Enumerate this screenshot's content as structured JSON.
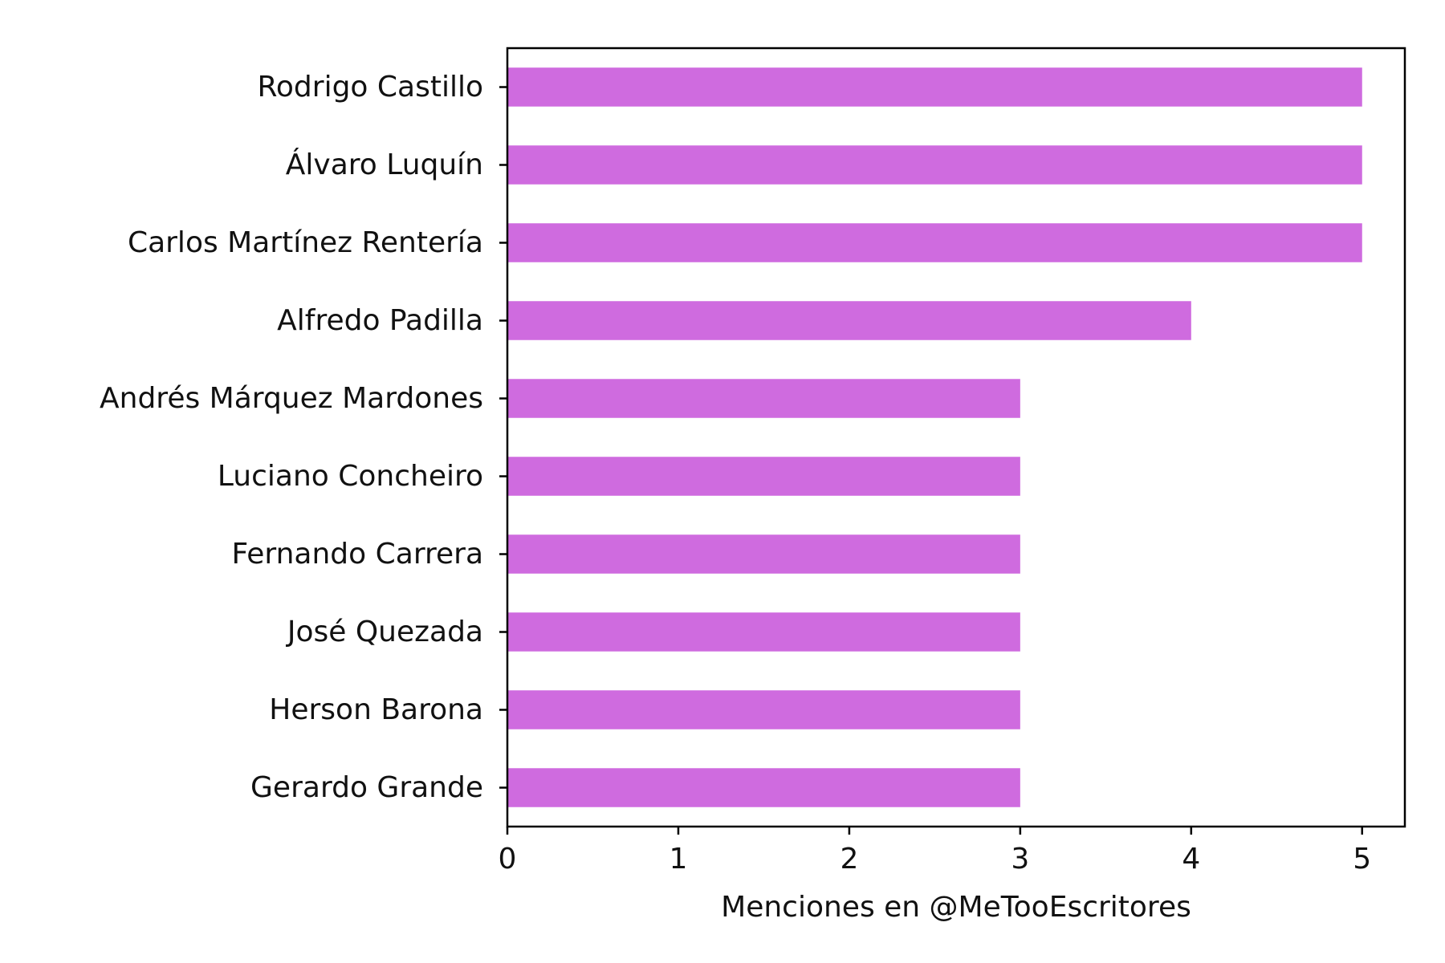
{
  "chart_data": {
    "type": "bar",
    "orientation": "horizontal",
    "title": "",
    "xlabel": "Menciones en @MeTooEscritores",
    "ylabel": "",
    "categories": [
      "Rodrigo Castillo",
      "Álvaro Luquín",
      "Carlos Martínez Rentería",
      "Alfredo Padilla",
      "Andrés Márquez Mardones",
      "Luciano Concheiro",
      "Fernando Carrera",
      "José Quezada",
      "Herson Barona",
      "Gerardo Grande"
    ],
    "values": [
      5,
      5,
      5,
      4,
      3,
      3,
      3,
      3,
      3,
      3
    ],
    "xlim": [
      0,
      5.25
    ],
    "xticks": [
      0,
      1,
      2,
      3,
      4,
      5
    ],
    "bar_color": "#cf6bdf",
    "grid": false,
    "legend": "none"
  }
}
